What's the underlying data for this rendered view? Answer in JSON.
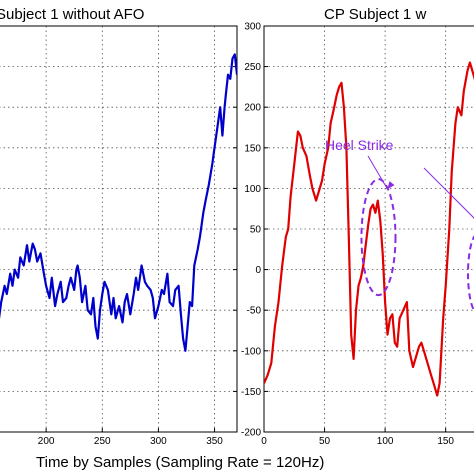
{
  "chart_data": [
    {
      "type": "line",
      "title": "Subject 1 without AFO",
      "xlabel": "",
      "ylabel": "",
      "xlim": [
        150,
        370
      ],
      "ylim": [
        -200,
        300
      ],
      "x_ticks": [
        200,
        250,
        300,
        350
      ],
      "y_ticks": [
        -200,
        -150,
        -100,
        -50,
        0,
        50,
        100,
        150,
        200,
        250,
        300
      ],
      "y_tick_labels_shown": false,
      "grid": true,
      "series": [
        {
          "name": "",
          "color": "#0000cc",
          "x": [
            150,
            155,
            158,
            160,
            163,
            165,
            168,
            170,
            172,
            175,
            177,
            180,
            183,
            185,
            188,
            190,
            192,
            195,
            198,
            200,
            203,
            205,
            208,
            210,
            213,
            215,
            218,
            220,
            222,
            225,
            227,
            228,
            230,
            232,
            235,
            237,
            240,
            242,
            244,
            246,
            248,
            250,
            252,
            255,
            258,
            260,
            262,
            265,
            268,
            270,
            272,
            275,
            278,
            280,
            282,
            285,
            288,
            290,
            293,
            295,
            297,
            300,
            303,
            305,
            308,
            310,
            313,
            315,
            318,
            320,
            322,
            324,
            326,
            328,
            330,
            332,
            335,
            337,
            340,
            342,
            345,
            348,
            350,
            352,
            355,
            357,
            359,
            360,
            362,
            364,
            366,
            368,
            370
          ],
          "values": [
            -100,
            -75,
            -60,
            -40,
            -20,
            -30,
            -5,
            -20,
            0,
            -10,
            15,
            5,
            30,
            10,
            32,
            25,
            10,
            20,
            -5,
            -20,
            -35,
            -10,
            -45,
            -30,
            -15,
            -40,
            -35,
            -20,
            -10,
            -25,
            0,
            5,
            -10,
            -40,
            -20,
            -50,
            -55,
            -35,
            -70,
            -85,
            -50,
            -30,
            -15,
            -25,
            -55,
            -35,
            -60,
            -45,
            -65,
            -40,
            -30,
            -55,
            -30,
            -10,
            -25,
            5,
            -15,
            -20,
            -25,
            -35,
            -60,
            -45,
            -25,
            -30,
            -5,
            -40,
            -45,
            -25,
            -20,
            -55,
            -85,
            -100,
            -70,
            -40,
            -45,
            5,
            25,
            40,
            70,
            85,
            105,
            130,
            150,
            170,
            200,
            165,
            200,
            215,
            240,
            235,
            260,
            265,
            240
          ]
        }
      ]
    },
    {
      "type": "line",
      "title": "CP Subject 1 w",
      "xlabel": "",
      "ylabel": "",
      "xlim": [
        0,
        180
      ],
      "ylim": [
        -200,
        300
      ],
      "x_ticks": [
        0,
        50,
        100,
        150
      ],
      "y_ticks": [
        -200,
        -150,
        -100,
        -50,
        0,
        50,
        100,
        150,
        200,
        250,
        300
      ],
      "grid": true,
      "annotations": [
        {
          "text": "Heel Strike",
          "color": "#8a2be2",
          "target_x": 97,
          "target_y": 40
        }
      ],
      "series": [
        {
          "name": "",
          "color": "#e00000",
          "x": [
            0,
            3,
            6,
            9,
            12,
            15,
            18,
            20,
            22,
            25,
            28,
            30,
            32,
            35,
            38,
            40,
            43,
            45,
            48,
            50,
            53,
            55,
            58,
            60,
            62,
            64,
            66,
            68,
            70,
            72,
            74,
            76,
            78,
            80,
            82,
            84,
            86,
            88,
            90,
            92,
            94,
            96,
            98,
            100,
            102,
            104,
            106,
            108,
            110,
            112,
            115,
            118,
            120,
            123,
            125,
            128,
            130,
            132,
            135,
            138,
            140,
            143,
            145,
            148,
            150,
            153,
            155,
            158,
            160,
            163,
            165,
            168,
            170,
            173,
            175,
            178,
            180
          ],
          "values": [
            -140,
            -130,
            -115,
            -70,
            -40,
            5,
            40,
            50,
            90,
            130,
            170,
            165,
            150,
            140,
            115,
            100,
            85,
            95,
            110,
            130,
            150,
            180,
            200,
            215,
            225,
            230,
            200,
            150,
            40,
            -80,
            -110,
            -50,
            -20,
            -10,
            5,
            30,
            55,
            75,
            80,
            70,
            85,
            60,
            20,
            -40,
            -80,
            -60,
            -55,
            -90,
            -95,
            -60,
            -50,
            -40,
            -100,
            -120,
            -110,
            -95,
            -90,
            -100,
            -115,
            -130,
            -140,
            -155,
            -140,
            -60,
            -20,
            50,
            120,
            180,
            200,
            190,
            220,
            245,
            255,
            240,
            230,
            250,
            270
          ]
        }
      ]
    }
  ],
  "shared_xlabel": "Time by Samples (Sampling Rate = 120Hz)",
  "colors": {
    "line1": "#0000cc",
    "line2": "#e00000",
    "annotation": "#8a2be2"
  }
}
